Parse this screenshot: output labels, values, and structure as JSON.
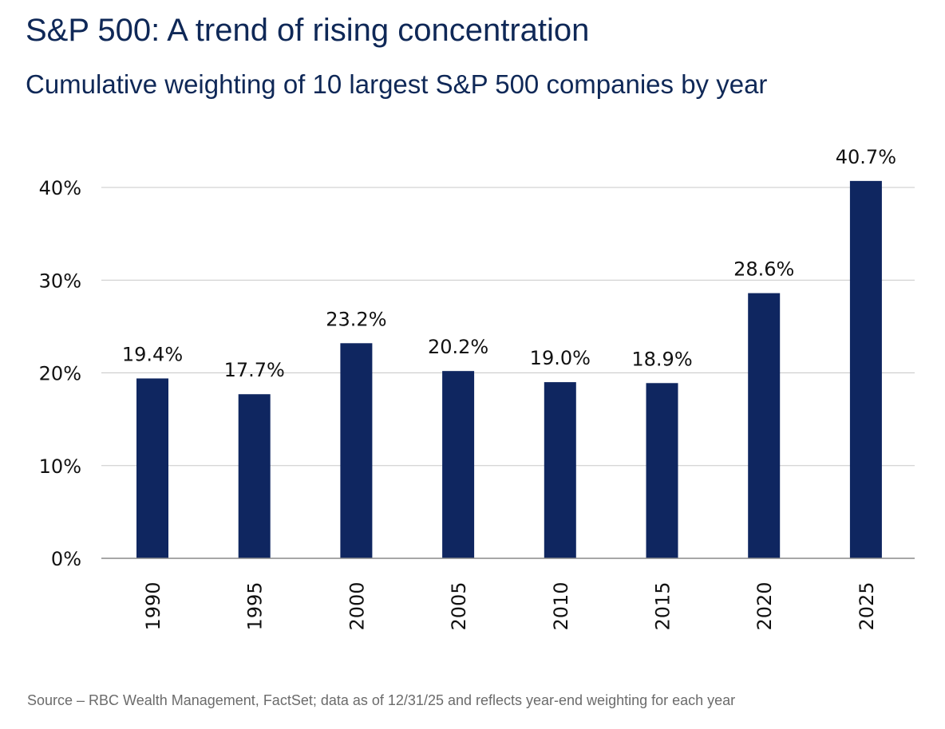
{
  "title": "S&P 500: A trend of rising concentration",
  "subtitle": "Cumulative weighting of 10 largest S&P 500 companies by year",
  "source": "Source – RBC Wealth Management, FactSet; data as of 12/31/25 and reflects year-end weighting for each year",
  "colors": {
    "bar": "#0f2660",
    "grid": "#c8c8c8",
    "axis": "#8a8a8a",
    "text": "#111111",
    "title": "#0f2857"
  },
  "chart_data": {
    "type": "bar",
    "categories": [
      "1990",
      "1995",
      "2000",
      "2005",
      "2010",
      "2015",
      "2020",
      "2025"
    ],
    "values": [
      19.4,
      17.7,
      23.2,
      20.2,
      19.0,
      18.9,
      28.6,
      40.7
    ],
    "data_labels": [
      "19.4%",
      "17.7%",
      "23.2%",
      "20.2%",
      "19.0%",
      "18.9%",
      "28.6%",
      "40.7%"
    ],
    "yticks": [
      0,
      10,
      20,
      30,
      40
    ],
    "ytick_labels": [
      "0%",
      "10%",
      "20%",
      "30%",
      "40%"
    ],
    "ylim": [
      0,
      40
    ],
    "grid": true,
    "legend": false
  }
}
